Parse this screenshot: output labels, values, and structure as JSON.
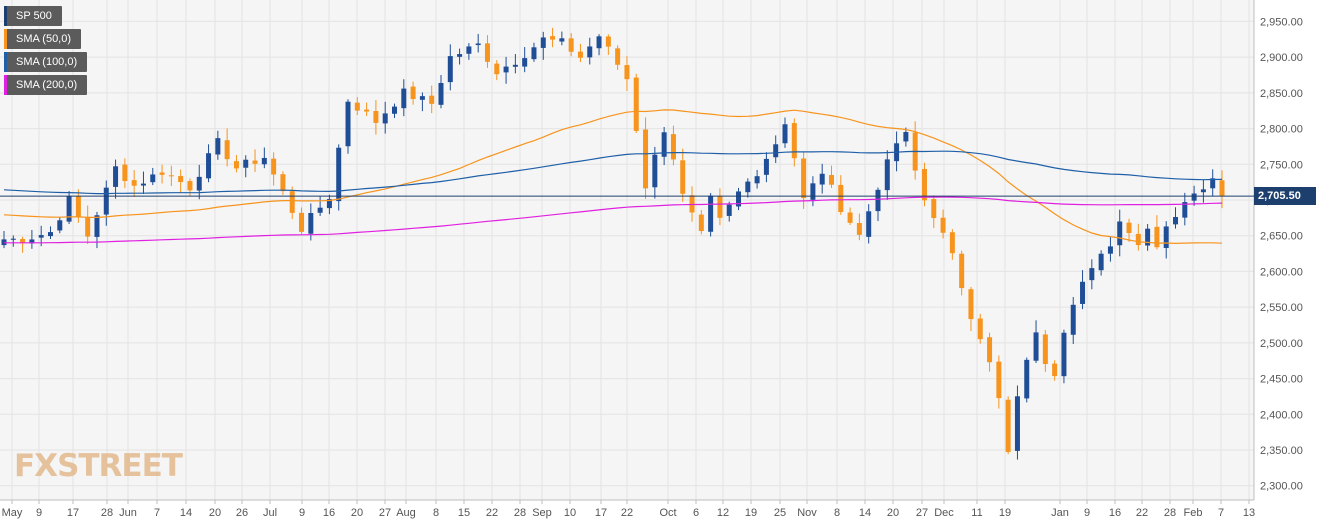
{
  "chart_data": {
    "type": "candlestick",
    "symbol": "SP 500",
    "last_price_label": "2,705.50",
    "last_price": 2705.5,
    "ylim": [
      2280,
      2980
    ],
    "y_ticks": [
      2300,
      2350,
      2400,
      2450,
      2500,
      2550,
      2600,
      2650,
      2700,
      2750,
      2800,
      2850,
      2900,
      2950
    ],
    "y_tick_labels": [
      "2,300.00",
      "2,350.00",
      "2,400.00",
      "2,450.00",
      "2,500.00",
      "2,550.00",
      "2,600.00",
      "2,650.00",
      "2,700.00",
      "2,750.00",
      "2,800.00",
      "2,850.00",
      "2,900.00",
      "2,950.00"
    ],
    "x_tick_labels": [
      "May",
      "9",
      "17",
      "28",
      "Jun",
      "7",
      "14",
      "20",
      "26",
      "Jul",
      "9",
      "16",
      "20",
      "27",
      "Aug",
      "8",
      "15",
      "22",
      "28",
      "Sep",
      "10",
      "17",
      "22",
      "Oct",
      "6",
      "12",
      "19",
      "25",
      "Nov",
      "8",
      "14",
      "20",
      "27",
      "Dec",
      "11",
      "19",
      "Jan",
      "9",
      "16",
      "22",
      "28",
      "Feb",
      "7",
      "13"
    ],
    "grid": true,
    "legend": [
      {
        "name": "SP 500",
        "color": "#1d3f6e"
      },
      {
        "name": "SMA (50,0)",
        "color": "#f7941d"
      },
      {
        "name": "SMA (100,0)",
        "color": "#1f5fa8"
      },
      {
        "name": "SMA (200,0)",
        "color": "#e020e0"
      }
    ],
    "series_points": [
      [
        2,
        2645
      ],
      [
        5,
        2655
      ],
      [
        7,
        2700
      ],
      [
        9,
        2650
      ],
      [
        12,
        2745
      ],
      [
        14,
        2720
      ],
      [
        17,
        2740
      ],
      [
        20,
        2718
      ],
      [
        23,
        2780
      ],
      [
        25,
        2745
      ],
      [
        28,
        2760
      ],
      [
        32,
        2660
      ],
      [
        35,
        2705
      ],
      [
        37,
        2840
      ],
      [
        40,
        2810
      ],
      [
        43,
        2850
      ],
      [
        46,
        2835
      ],
      [
        48,
        2900
      ],
      [
        51,
        2917
      ],
      [
        53,
        2880
      ],
      [
        55,
        2895
      ],
      [
        58,
        2925
      ],
      [
        60,
        2920
      ],
      [
        62,
        2900
      ],
      [
        64,
        2930
      ],
      [
        66,
        2890
      ],
      [
        67,
        2870
      ],
      [
        68,
        2800
      ],
      [
        69,
        2720
      ],
      [
        70,
        2760
      ],
      [
        71,
        2800
      ],
      [
        72,
        2760
      ],
      [
        73,
        2705
      ],
      [
        75,
        2650
      ],
      [
        76,
        2700
      ],
      [
        77,
        2670
      ],
      [
        79,
        2710
      ],
      [
        81,
        2740
      ],
      [
        83,
        2780
      ],
      [
        84,
        2810
      ],
      [
        85,
        2760
      ],
      [
        86,
        2700
      ],
      [
        88,
        2740
      ],
      [
        90,
        2690
      ],
      [
        91,
        2670
      ],
      [
        92,
        2650
      ],
      [
        94,
        2720
      ],
      [
        96,
        2780
      ],
      [
        97,
        2790
      ],
      [
        98,
        2740
      ],
      [
        99,
        2700
      ],
      [
        100,
        2680
      ],
      [
        101,
        2650
      ],
      [
        102,
        2620
      ],
      [
        103,
        2580
      ],
      [
        104,
        2540
      ],
      [
        105,
        2510
      ],
      [
        106,
        2470
      ],
      [
        107,
        2420
      ],
      [
        108,
        2345
      ],
      [
        109,
        2420
      ],
      [
        110,
        2480
      ],
      [
        111,
        2510
      ],
      [
        112,
        2475
      ],
      [
        113,
        2460
      ],
      [
        114,
        2520
      ],
      [
        115,
        2560
      ],
      [
        116,
        2585
      ],
      [
        117,
        2600
      ],
      [
        118,
        2620
      ],
      [
        119,
        2640
      ],
      [
        120,
        2670
      ],
      [
        121,
        2660
      ],
      [
        122,
        2640
      ],
      [
        123,
        2660
      ],
      [
        124,
        2640
      ],
      [
        125,
        2665
      ],
      [
        126,
        2680
      ],
      [
        127,
        2700
      ],
      [
        128,
        2705
      ],
      [
        129,
        2720
      ],
      [
        130,
        2735
      ],
      [
        131,
        2705
      ]
    ]
  },
  "watermark": "FXSTREET"
}
